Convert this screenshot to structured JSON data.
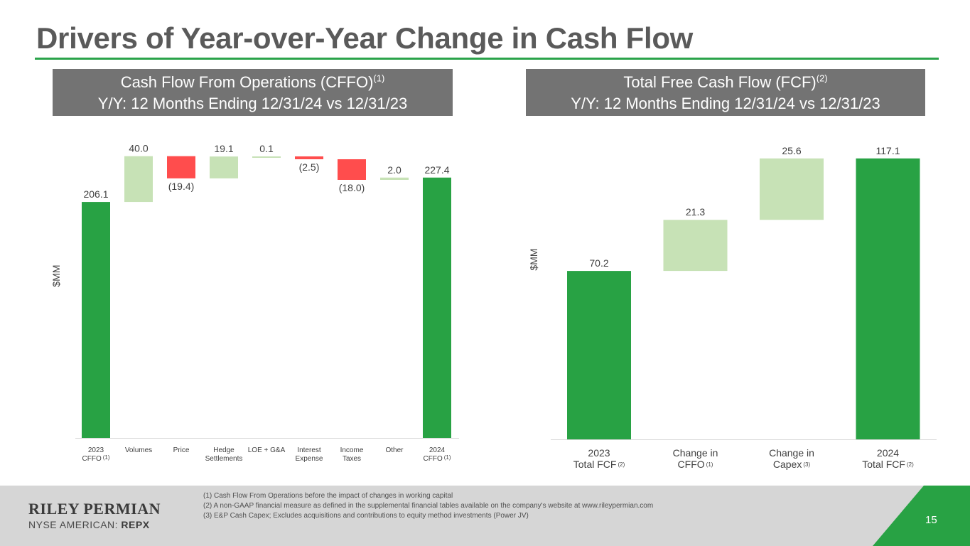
{
  "title": "Drivers of Year-over-Year Change in Cash Flow",
  "colors": {
    "dark_green": "#28a244",
    "light_green": "#c7e2b6",
    "red": "#ff4d4d",
    "gray_header": "#737373",
    "accent": "#2aa34a"
  },
  "left_panel": {
    "title": "Cash Flow From Operations (CFFO)",
    "title_sup": "(1)",
    "subtitle": "Y/Y: 12 Months Ending 12/31/24 vs 12/31/23"
  },
  "right_panel": {
    "title": "Total Free Cash Flow (FCF)",
    "title_sup": "(2)",
    "subtitle": "Y/Y: 12 Months Ending 12/31/24 vs 12/31/23"
  },
  "chart_data": [
    {
      "type": "waterfall",
      "ylabel": "$MM",
      "ylim": [
        0,
        240
      ],
      "categories": [
        {
          "label": "2023\nCFFO",
          "sup": "(1)"
        },
        {
          "label": "Volumes",
          "sup": ""
        },
        {
          "label": "Price",
          "sup": ""
        },
        {
          "label": "Hedge\nSettlements",
          "sup": ""
        },
        {
          "label": "LOE + G&A",
          "sup": ""
        },
        {
          "label": "Interest\nExpense",
          "sup": ""
        },
        {
          "label": "Income\nTaxes",
          "sup": ""
        },
        {
          "label": "Other",
          "sup": ""
        },
        {
          "label": "2024\nCFFO",
          "sup": "(1)"
        }
      ],
      "values": [
        206.1,
        40.0,
        -19.4,
        19.1,
        0.1,
        -2.5,
        -18.0,
        2.0,
        227.4
      ],
      "kinds": [
        "total",
        "delta",
        "delta",
        "delta",
        "delta",
        "delta",
        "delta",
        "delta",
        "total"
      ],
      "value_labels": [
        "206.1",
        "40.0",
        "(19.4)",
        "19.1",
        "0.1",
        "(2.5)",
        "(18.0)",
        "2.0",
        "227.4"
      ]
    },
    {
      "type": "waterfall",
      "ylabel": "$MM",
      "ylim": [
        0,
        125
      ],
      "categories": [
        {
          "label": "2023\nTotal FCF",
          "sup": "(2)"
        },
        {
          "label": "Change in\nCFFO",
          "sup": "(1)"
        },
        {
          "label": "Change in\nCapex",
          "sup": "(3)"
        },
        {
          "label": "2024\nTotal FCF",
          "sup": "(2)"
        }
      ],
      "values": [
        70.2,
        21.3,
        25.6,
        117.1
      ],
      "kinds": [
        "total",
        "delta",
        "delta",
        "total"
      ],
      "value_labels": [
        "70.2",
        "21.3",
        "25.6",
        "117.1"
      ]
    }
  ],
  "footer": {
    "logo": "RILEY PERMIAN",
    "exchange": "NYSE AMERICAN:",
    "symbol": "REPX",
    "notes": [
      "(1)  Cash Flow From Operations before the impact of changes in working capital",
      "(2)  A non-GAAP financial measure as defined in the supplemental financial tables available on the company's website at www.rileypermian.com",
      "(3)  E&P Cash Capex; Excludes acquisitions and contributions to equity method investments (Power JV)"
    ],
    "page_number": "15"
  }
}
